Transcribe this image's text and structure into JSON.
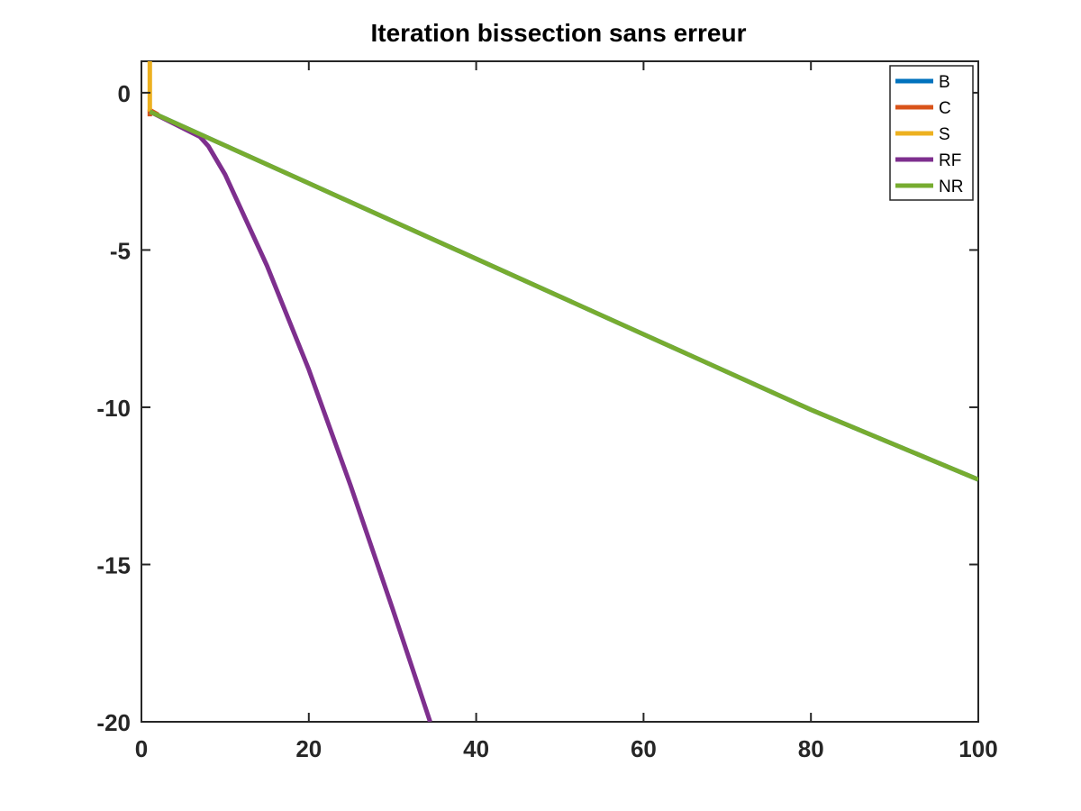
{
  "chart_data": {
    "type": "line",
    "title": "Iteration bissection sans erreur",
    "xlabel": "",
    "ylabel": "",
    "xlim": [
      0,
      100
    ],
    "ylim": [
      -20,
      1
    ],
    "x_ticks": [
      0,
      20,
      40,
      60,
      80,
      100
    ],
    "y_ticks": [
      0,
      -5,
      -10,
      -15,
      -20
    ],
    "x_tick_labels": [
      "0",
      "20",
      "40",
      "60",
      "80",
      "100"
    ],
    "y_tick_labels": [
      "0",
      "-5",
      "-10",
      "-15",
      "-20"
    ],
    "grid": false,
    "legend_position": "top-right",
    "series": [
      {
        "name": "B",
        "color": "#0072BD",
        "x": [
          1,
          2,
          10,
          20,
          40,
          60,
          80,
          100
        ],
        "y": [
          -0.6,
          -0.72,
          -1.68,
          -2.88,
          -5.28,
          -7.68,
          -10.08,
          -12.3
        ]
      },
      {
        "name": "C",
        "color": "#D95319",
        "x": [
          1,
          1,
          2
        ],
        "y": [
          -0.75,
          -0.55,
          -0.7
        ]
      },
      {
        "name": "S",
        "color": "#EDB120",
        "x": [
          1,
          1
        ],
        "y": [
          1,
          -0.6
        ]
      },
      {
        "name": "RF",
        "color": "#7E2F8E",
        "x": [
          1,
          4,
          7,
          8,
          10,
          15,
          20,
          25,
          30,
          34.5
        ],
        "y": [
          -0.6,
          -1.0,
          -1.4,
          -1.7,
          -2.6,
          -5.5,
          -8.8,
          -12.5,
          -16.4,
          -20
        ]
      },
      {
        "name": "NR",
        "color": "#77AC30",
        "x": [
          1,
          2,
          10,
          20,
          40,
          60,
          80,
          100
        ],
        "y": [
          -0.6,
          -0.72,
          -1.68,
          -2.88,
          -5.28,
          -7.68,
          -10.08,
          -12.3
        ]
      }
    ]
  }
}
